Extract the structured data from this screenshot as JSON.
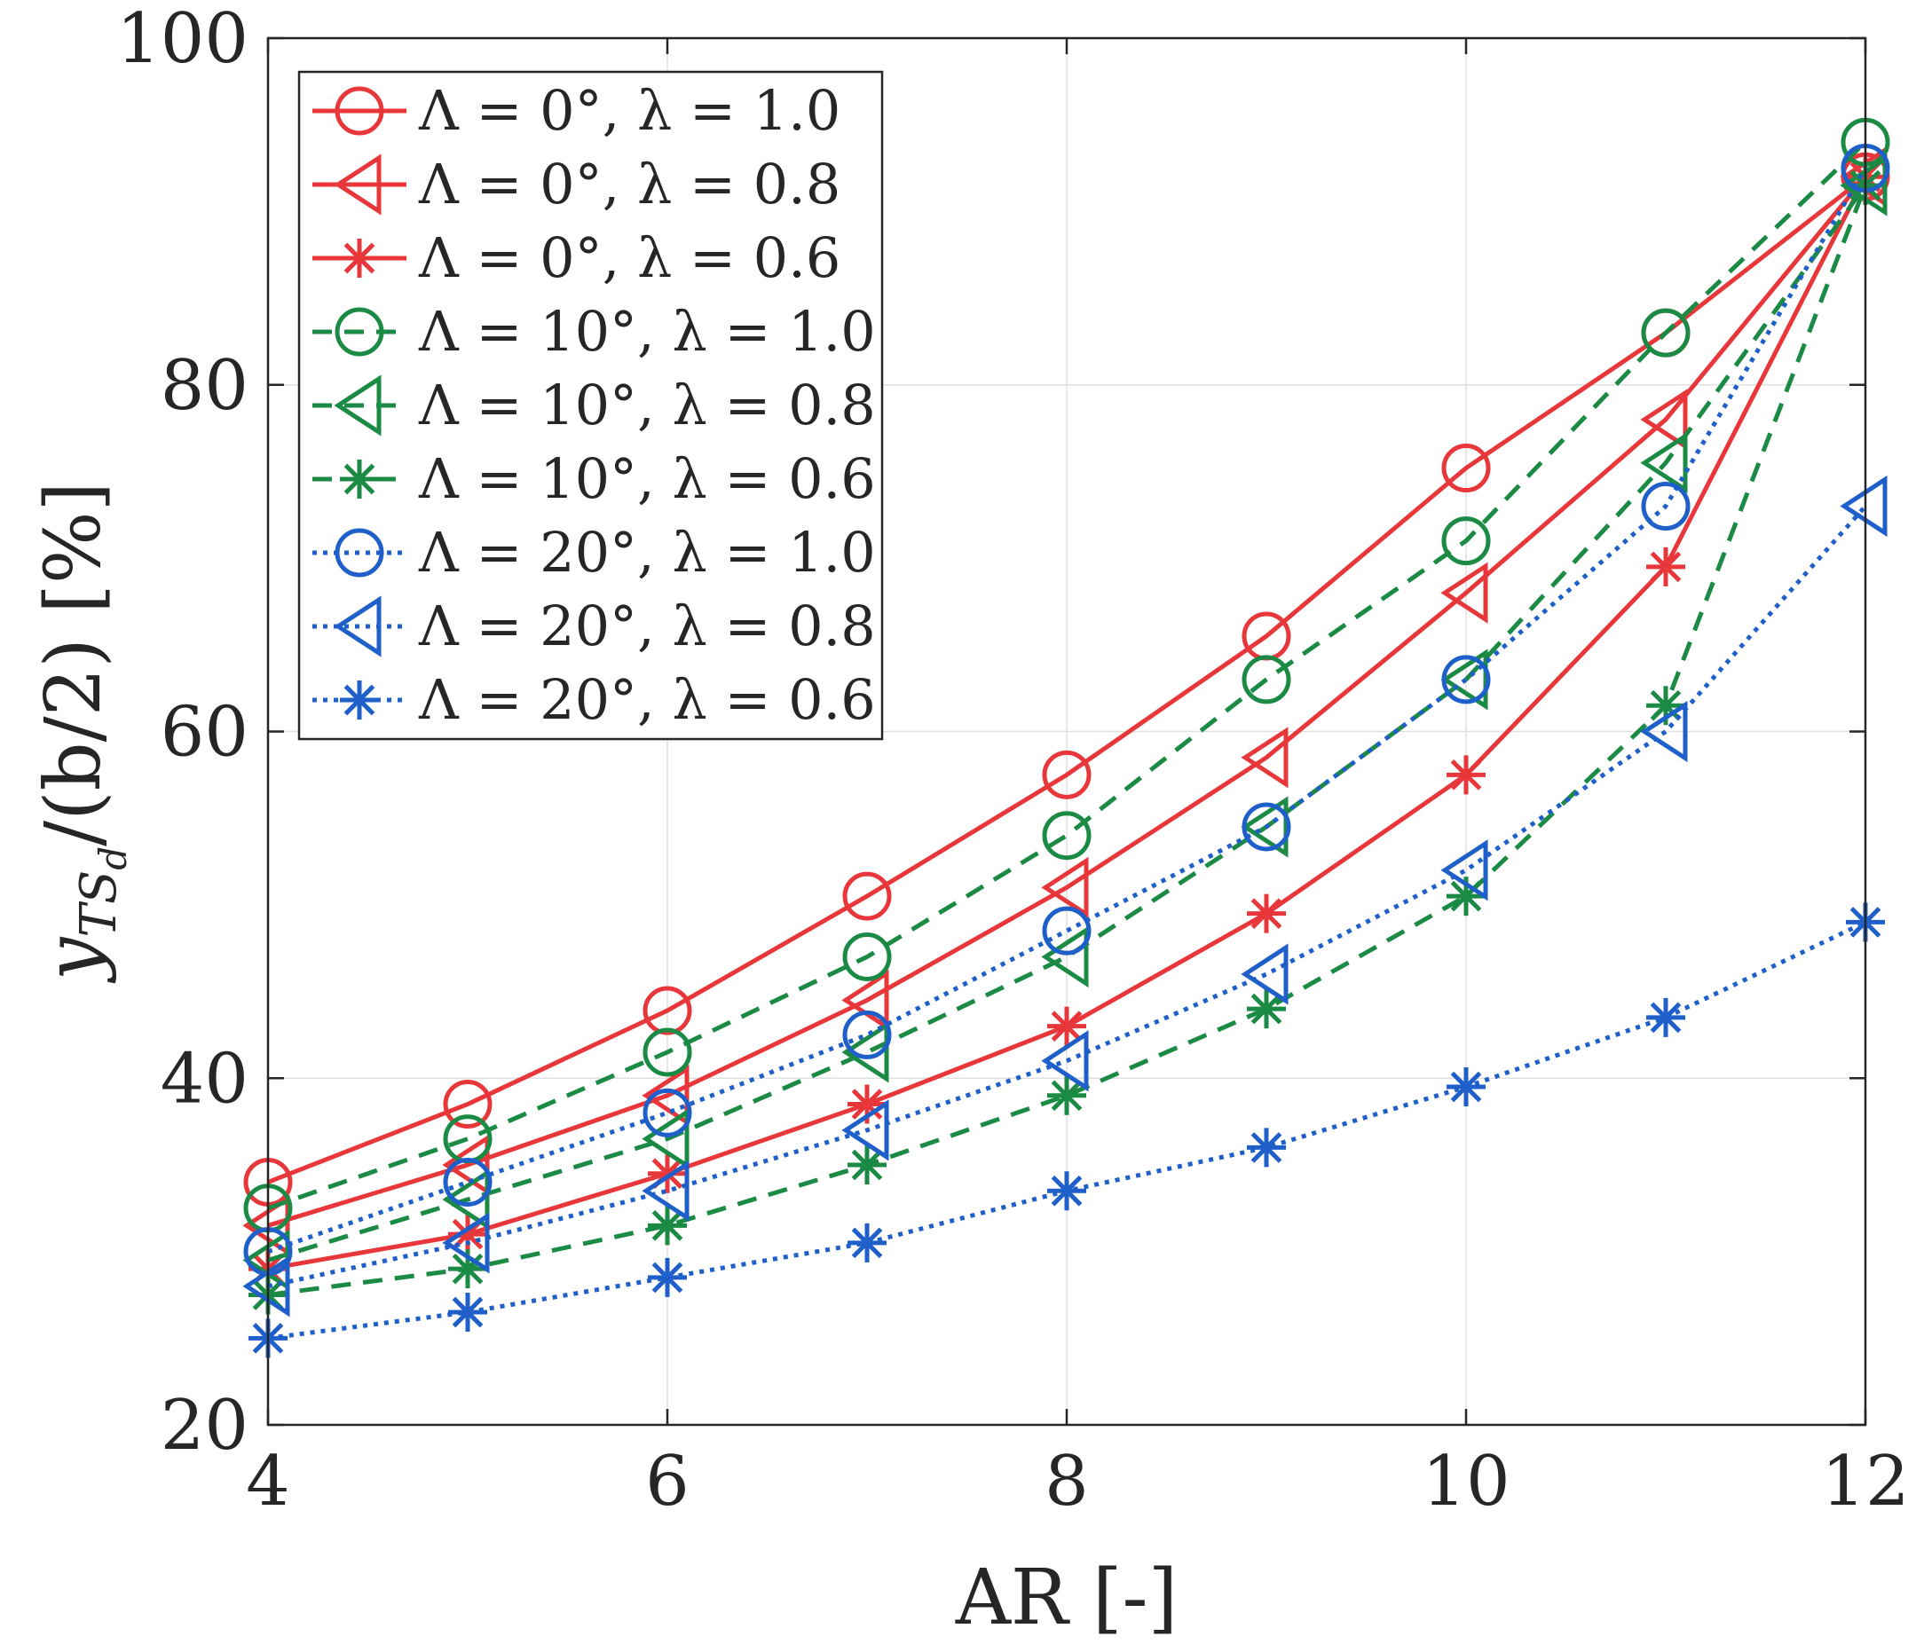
{
  "chart_data": {
    "type": "line",
    "title": "",
    "xlabel": "AR [-]",
    "ylabel_parts": {
      "base": "y",
      "sub1": "TS",
      "sub2": "d",
      "rest": "/(b/2)  [%]"
    },
    "xlim": [
      4,
      12
    ],
    "ylim": [
      20,
      100
    ],
    "xticks": [
      4,
      6,
      8,
      10,
      12
    ],
    "yticks": [
      20,
      40,
      60,
      80,
      100
    ],
    "grid": true,
    "legend_position": "top-left",
    "x": [
      4,
      5,
      6,
      7,
      8,
      9,
      10,
      11,
      12
    ],
    "series": [
      {
        "name": "Λ = 0°,  λ = 1.0",
        "color": "#e8373a",
        "dash": "solid",
        "marker": "circle",
        "values": [
          34.0,
          38.5,
          43.9,
          50.5,
          57.5,
          65.5,
          75.2,
          83.0,
          92.0
        ]
      },
      {
        "name": "Λ = 0°,  λ = 0.8",
        "color": "#e8373a",
        "dash": "solid",
        "marker": "triangle",
        "values": [
          31.5,
          35.0,
          39.0,
          44.5,
          51.0,
          58.5,
          68.0,
          78.0,
          92.0
        ]
      },
      {
        "name": "Λ = 0°,  λ = 0.6",
        "color": "#e8373a",
        "dash": "solid",
        "marker": "asterisk",
        "values": [
          29.0,
          31.0,
          34.5,
          38.5,
          43.0,
          49.5,
          57.5,
          69.5,
          92.0
        ]
      },
      {
        "name": "Λ = 10°,  λ = 1.0",
        "color": "#1b8a45",
        "dash": "dashed",
        "marker": "circle",
        "values": [
          32.5,
          36.5,
          41.5,
          47.0,
          54.0,
          63.0,
          71.0,
          83.0,
          94.0
        ]
      },
      {
        "name": "Λ = 10°,  λ = 0.8",
        "color": "#1b8a45",
        "dash": "dashed",
        "marker": "triangle",
        "values": [
          29.5,
          33.0,
          36.5,
          41.5,
          47.0,
          54.5,
          63.0,
          75.5,
          91.5
        ]
      },
      {
        "name": "Λ = 10°,  λ = 0.6",
        "color": "#1b8a45",
        "dash": "dashed",
        "marker": "asterisk",
        "values": [
          27.5,
          29.0,
          31.5,
          35.0,
          39.0,
          44.0,
          50.5,
          61.5,
          91.5
        ]
      },
      {
        "name": "Λ = 20°,  λ = 1.0",
        "color": "#1f5fc9",
        "dash": "dotted",
        "marker": "circle",
        "values": [
          30.0,
          34.0,
          38.0,
          42.5,
          48.5,
          54.5,
          63.0,
          73.0,
          92.5
        ]
      },
      {
        "name": "Λ = 20°,  λ = 0.8",
        "color": "#1f5fc9",
        "dash": "dotted",
        "marker": "triangle",
        "values": [
          28.0,
          30.5,
          33.5,
          37.0,
          41.0,
          46.0,
          52.0,
          60.0,
          73.0
        ]
      },
      {
        "name": "Λ = 20°,  λ = 0.6",
        "color": "#1f5fc9",
        "dash": "dotted",
        "marker": "asterisk",
        "values": [
          25.0,
          26.5,
          28.5,
          30.5,
          33.5,
          36.0,
          39.5,
          43.5,
          49.0
        ]
      }
    ]
  }
}
